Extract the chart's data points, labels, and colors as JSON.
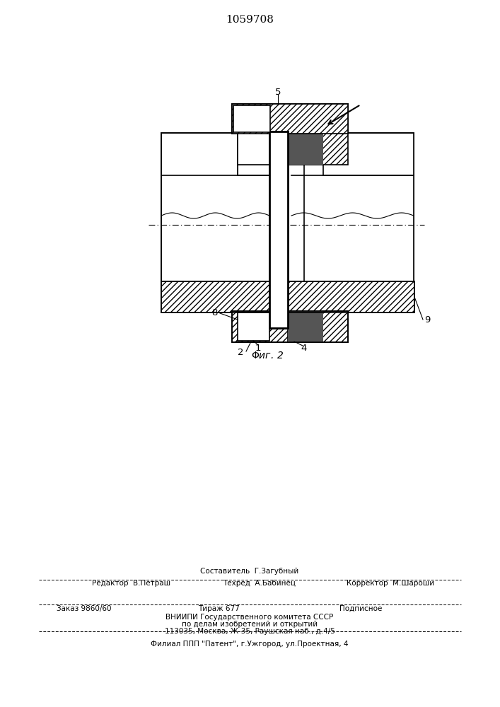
{
  "title": "1059708",
  "background_color": "#ffffff",
  "footer": {
    "line1": "Составитель  Г.Загубный",
    "line2_left": "Редактор  В.Петраш",
    "line2_mid": "Техред  А.Бабинец",
    "line2_right": "Корректор  М.Шароши",
    "line3_left": "Заказ 9860/60",
    "line3_mid": "Тираж 677",
    "line3_right": "Подписное",
    "line4": "ВНИИПИ Государственного комитета СССР",
    "line5": "по делам изобретений и открытий",
    "line6": "113035, Москва, Ж-35, Раушская наб., д.4/5",
    "line7": "Филиал ППП \"Патент\", г.Ужгород, ул.Проектная, 4"
  }
}
